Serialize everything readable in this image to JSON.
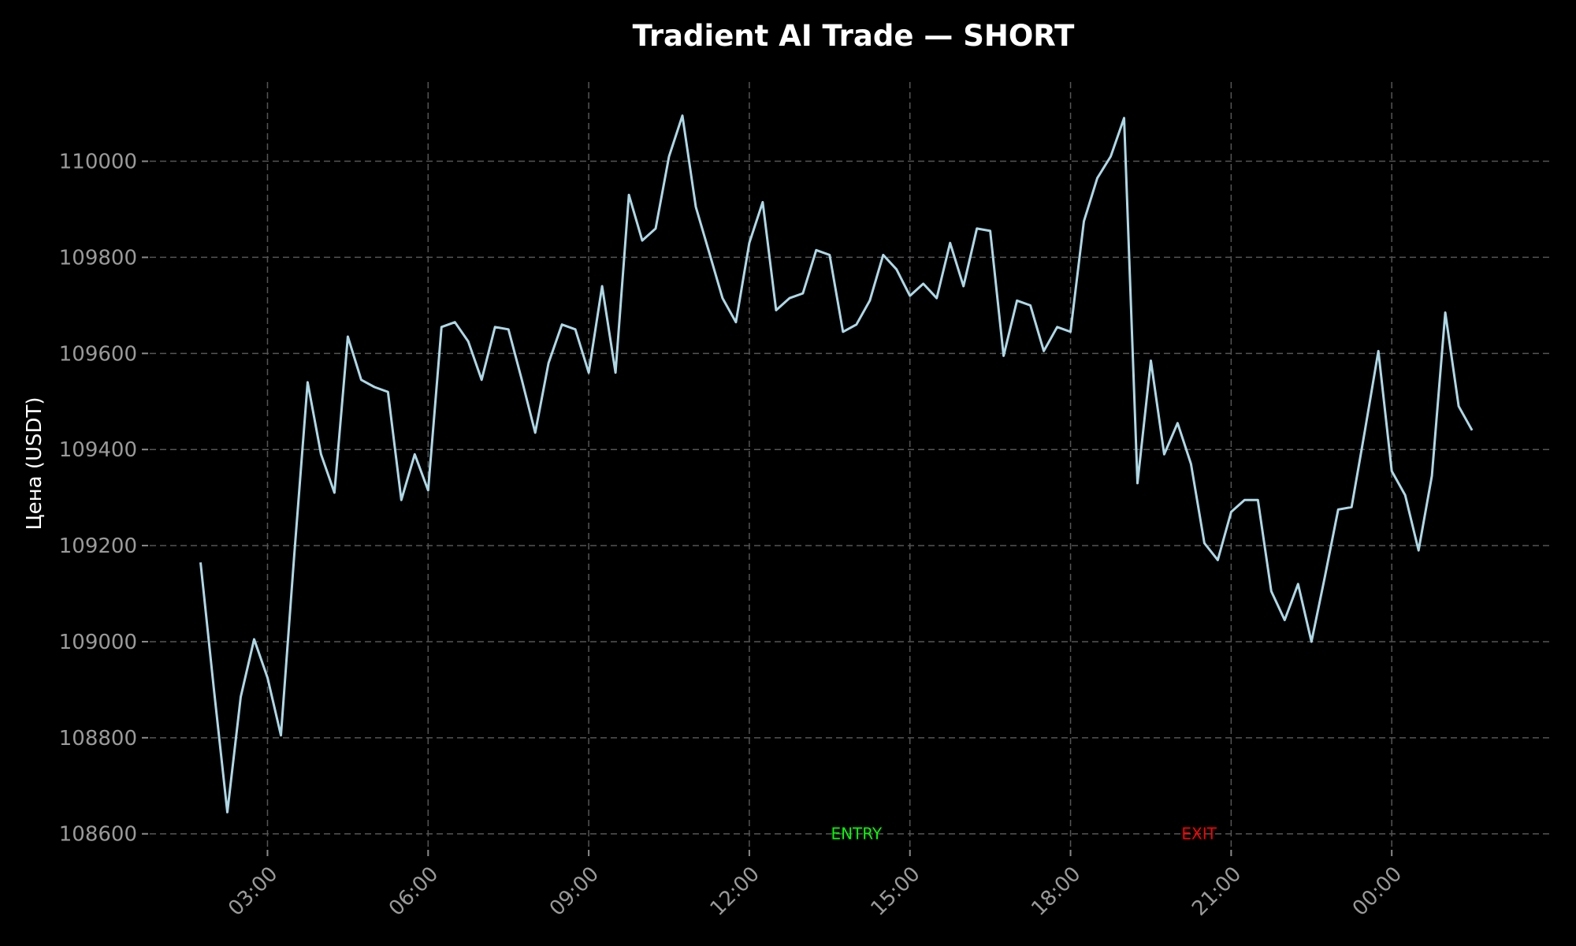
{
  "chart_data": {
    "type": "line",
    "title": "Tradient AI Trade — SHORT",
    "ylabel": "Цена (USDT)",
    "xlabel": "",
    "x_ticks": [
      {
        "label": "03:00",
        "t": 3.0
      },
      {
        "label": "06:00",
        "t": 6.0
      },
      {
        "label": "09:00",
        "t": 9.0
      },
      {
        "label": "12:00",
        "t": 12.0
      },
      {
        "label": "15:00",
        "t": 15.0
      },
      {
        "label": "18:00",
        "t": 18.0
      },
      {
        "label": "21:00",
        "t": 21.0
      },
      {
        "label": "00:00",
        "t": 24.0
      }
    ],
    "y_ticks": [
      108600,
      108800,
      109000,
      109200,
      109400,
      109600,
      109800,
      110000
    ],
    "xlim": [
      0.8,
      27.0
    ],
    "ylim": [
      108570,
      110165
    ],
    "grid": true,
    "annotations": [
      {
        "text": "ENTRY",
        "t": 14.0,
        "y": 108600,
        "color": "#00ff00"
      },
      {
        "text": "EXIT",
        "t": 20.4,
        "y": 108600,
        "color": "#ff0000"
      }
    ],
    "series": [
      {
        "color": "#add8e6",
        "t_start": 1.75,
        "t_step": 0.25,
        "values": [
          109165,
          108900,
          108645,
          108885,
          109005,
          108925,
          108805,
          109180,
          109540,
          109390,
          109310,
          109635,
          109545,
          109530,
          109520,
          109295,
          109390,
          109315,
          109655,
          109665,
          109625,
          109545,
          109655,
          109650,
          109545,
          109435,
          109580,
          109660,
          109650,
          109560,
          109740,
          109560,
          109930,
          109835,
          109860,
          110010,
          110095,
          109905,
          109810,
          109715,
          109665,
          109830,
          109915,
          109690,
          109715,
          109725,
          109815,
          109805,
          109645,
          109660,
          109710,
          109805,
          109775,
          109720,
          109745,
          109715,
          109830,
          109740,
          109860,
          109855,
          109595,
          109710,
          109700,
          109605,
          109655,
          109645,
          109875,
          109965,
          110010,
          110090,
          109330,
          109585,
          109390,
          109455,
          109370,
          109205,
          109170,
          109270,
          109295,
          109295,
          109105,
          109045,
          109120,
          109000,
          109135,
          109275,
          109280,
          109440,
          109605,
          109355,
          109305,
          109190,
          109345,
          109685,
          109490,
          109440
        ]
      }
    ]
  }
}
